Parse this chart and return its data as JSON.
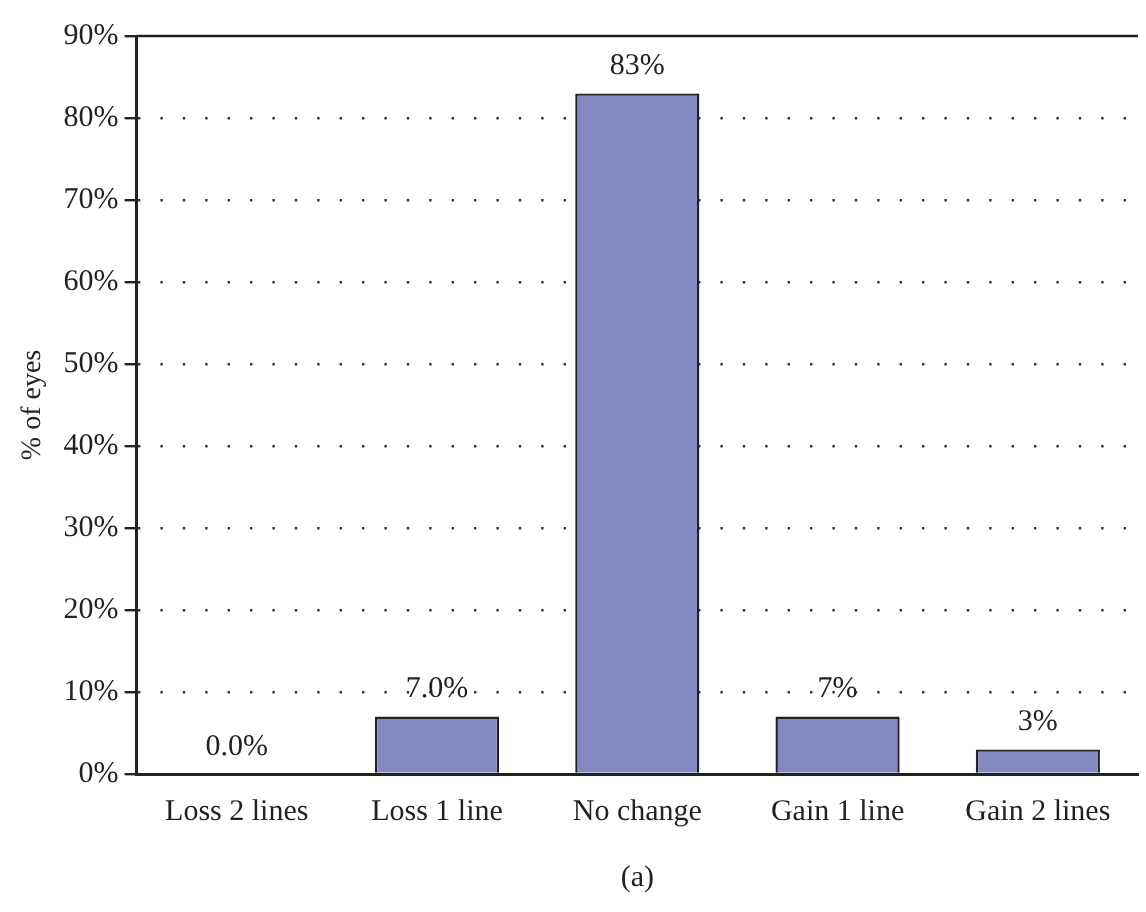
{
  "chart_data": {
    "type": "bar",
    "ylabel": "% of eyes",
    "xlabel": "(a)",
    "categories": [
      "Loss 2 lines",
      "Loss 1 line",
      "No change",
      "Gain 1 line",
      "Gain 2 lines"
    ],
    "values": [
      0,
      7,
      83,
      7,
      3
    ],
    "color": "#8589c2",
    "value_labels": [
      "0.0%",
      "7.0%",
      "83%",
      "7%",
      "3%"
    ],
    "ylim": [
      0,
      90
    ],
    "yticks": [
      {
        "value": 0,
        "label": "0%"
      },
      {
        "value": 10,
        "label": "10%"
      },
      {
        "value": 20,
        "label": "20%"
      },
      {
        "value": 30,
        "label": "30%"
      },
      {
        "value": 40,
        "label": "40%"
      },
      {
        "value": 50,
        "label": "50%"
      },
      {
        "value": 60,
        "label": "60%"
      },
      {
        "value": 70,
        "label": "70%"
      },
      {
        "value": 80,
        "label": "80%"
      },
      {
        "value": 90,
        "label": "90%"
      }
    ],
    "grid": "y",
    "legend": false
  }
}
